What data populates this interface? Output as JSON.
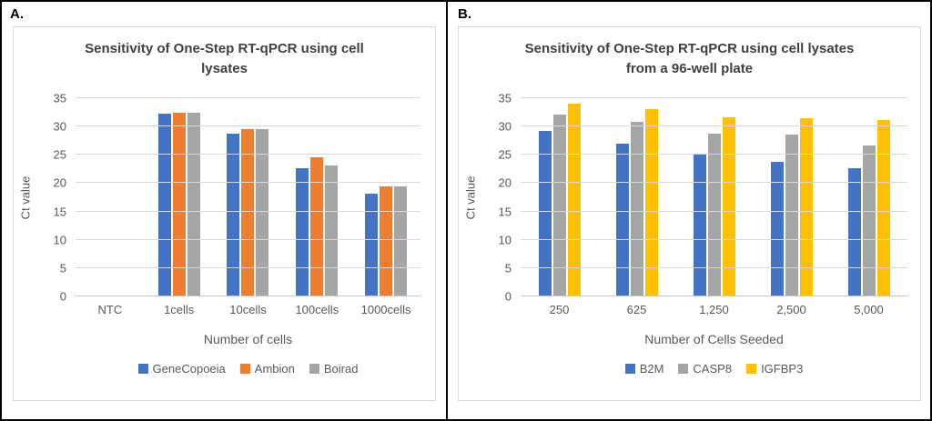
{
  "figure": {
    "border_color": "#000000",
    "panel_box_border_color": "#d9d9d9",
    "title_color": "#404040",
    "axis_text_color": "#595959",
    "gridline_color": "#d9d9d9"
  },
  "chart_data": [
    {
      "type": "bar",
      "panel_label": "A.",
      "title": "Sensitivity of One-Step RT-qPCR using cell\nlysates",
      "xlabel": "Number of cells",
      "ylabel": "Ct value",
      "ymax": 35,
      "ylim": [
        0,
        35
      ],
      "yticks": [
        35,
        30,
        25,
        20,
        15,
        10,
        5,
        0
      ],
      "grid": "horizontal",
      "legend_position": "bottom",
      "categories": [
        "NTC",
        "1cells",
        "10cells",
        "100cells",
        "1000cells"
      ],
      "series": [
        {
          "name": "GeneCopoeia",
          "color": "#4472C4",
          "values": [
            0,
            32.2,
            28.8,
            22.7,
            18.1
          ]
        },
        {
          "name": "Ambion",
          "color": "#ED7D31",
          "values": [
            0,
            32.5,
            29.6,
            24.5,
            19.4
          ]
        },
        {
          "name": "Boirad",
          "color": "#A5A5A5",
          "values": [
            0,
            32.5,
            29.5,
            23.2,
            19.4
          ]
        }
      ]
    },
    {
      "type": "bar",
      "panel_label": "B.",
      "title": "Sensitivity of One-Step RT-qPCR using cell lysates\nfrom a 96-well plate",
      "xlabel": "Number of Cells Seeded",
      "ylabel": "Ct value",
      "ymax": 35,
      "ylim": [
        0,
        35
      ],
      "yticks": [
        35,
        30,
        25,
        20,
        15,
        10,
        5,
        0
      ],
      "grid": "horizontal",
      "legend_position": "bottom",
      "categories": [
        "250",
        "625",
        "1,250",
        "2,500",
        "5,000"
      ],
      "series": [
        {
          "name": "B2M",
          "color": "#4472C4",
          "values": [
            29.3,
            26.9,
            25.1,
            23.7,
            22.6
          ]
        },
        {
          "name": "CASP8",
          "color": "#A5A5A5",
          "values": [
            32.1,
            30.9,
            28.8,
            28.6,
            26.7
          ]
        },
        {
          "name": "IGFBP3",
          "color": "#FFC000",
          "values": [
            34.0,
            33.0,
            31.7,
            31.5,
            31.2
          ]
        }
      ]
    }
  ]
}
